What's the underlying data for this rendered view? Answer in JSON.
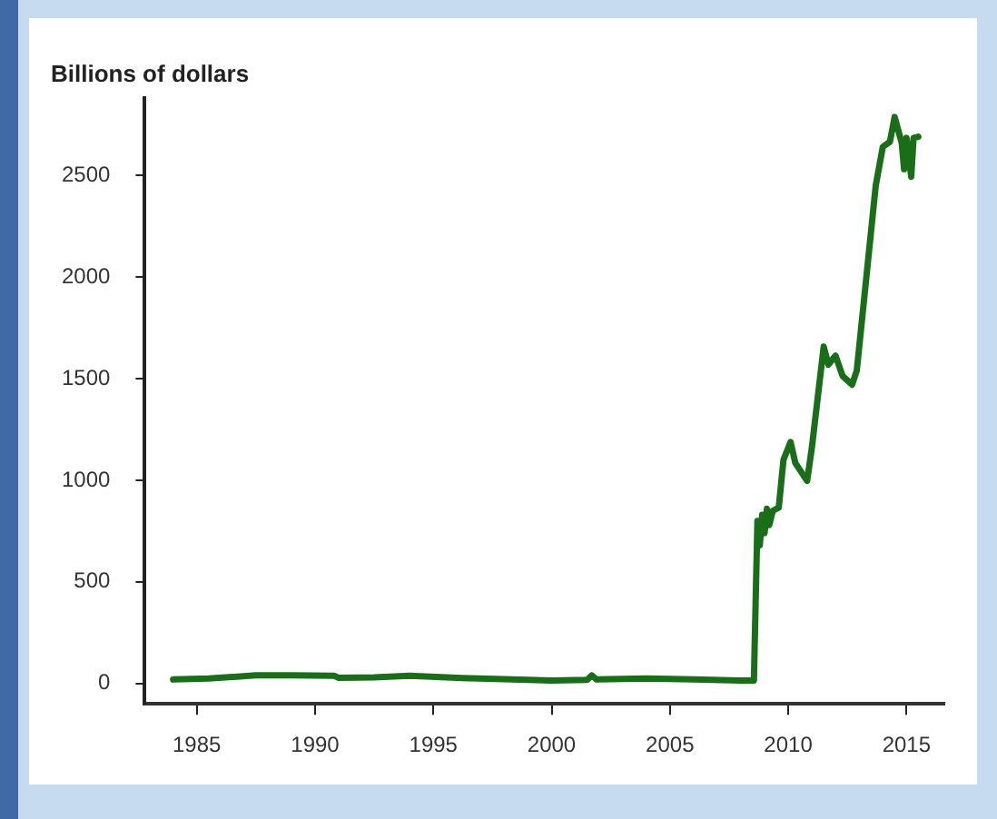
{
  "chart_data": {
    "type": "line",
    "ylabel": "Billions of dollars",
    "x": [
      1984.0,
      1985.5,
      1987.5,
      1989.0,
      1990.8,
      1991.0,
      1992.5,
      1994.0,
      1996.0,
      1998.0,
      2000.0,
      2001.5,
      2001.7,
      2001.9,
      2004.0,
      2006.0,
      2008.0,
      2008.55,
      2008.7,
      2008.8,
      2008.9,
      2009.0,
      2009.1,
      2009.2,
      2009.35,
      2009.6,
      2009.8,
      2010.1,
      2010.3,
      2010.8,
      2011.0,
      2011.5,
      2011.7,
      2012.0,
      2012.3,
      2012.7,
      2012.9,
      2013.7,
      2014.0,
      2014.3,
      2014.5,
      2014.8,
      2014.9,
      2015.0,
      2015.2,
      2015.3,
      2015.5
    ],
    "series": [
      {
        "color": "#1a6e1a",
        "values": [
          20,
          25,
          40,
          40,
          38,
          28,
          30,
          38,
          28,
          22,
          15,
          18,
          40,
          20,
          25,
          20,
          15,
          15,
          800,
          680,
          830,
          740,
          860,
          780,
          850,
          865,
          1100,
          1188,
          1085,
          997,
          1160,
          1657,
          1569,
          1613,
          1513,
          1470,
          1540,
          2449,
          2640,
          2665,
          2787,
          2658,
          2530,
          2684,
          2493,
          2684,
          2690
        ]
      }
    ],
    "xlim": [
      1982.8,
      2016.6
    ],
    "xticks": [
      1985,
      1990,
      1995,
      2000,
      2005,
      2010,
      2015
    ],
    "ylim": [
      -100,
      2880
    ],
    "yticks": [
      0,
      500,
      1000,
      1500,
      2000,
      2500
    ],
    "grid": false,
    "legend": false,
    "marker": "none",
    "line_style": "solid"
  }
}
